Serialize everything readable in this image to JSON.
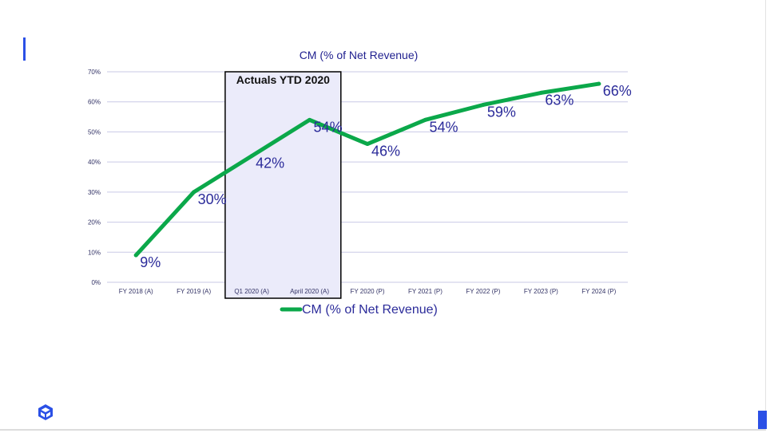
{
  "colors": {
    "accent": "#2b50e6",
    "series_line": "#0ba84a",
    "highlight_fill": "#ebebfa",
    "highlight_border": "#000000",
    "grid": "#c9c9e6"
  },
  "logo": {
    "icon": "cube-logo-icon"
  },
  "chart_data": {
    "type": "line",
    "title": "CM (% of Net Revenue)",
    "categories": [
      "FY 2018 (A)",
      "FY 2019 (A)",
      "Q1 2020 (A)",
      "April 2020 (A)",
      "FY 2020 (P)",
      "FY 2021 (P)",
      "FY 2022 (P)",
      "FY 2023 (P)",
      "FY 2024 (P)"
    ],
    "series": [
      {
        "name": "CM (% of Net Revenue)",
        "values": [
          9,
          30,
          42,
          54,
          46,
          54,
          59,
          63,
          66
        ]
      }
    ],
    "data_labels": [
      "9%",
      "30%",
      "42%",
      "54%",
      "46%",
      "54%",
      "59%",
      "63%",
      "66%"
    ],
    "y_ticks": [
      "0%",
      "10%",
      "20%",
      "30%",
      "40%",
      "50%",
      "60%",
      "70%"
    ],
    "ylim": [
      0,
      70
    ],
    "grid": true,
    "legend": "bottom",
    "annotation": {
      "label": "Actuals YTD 2020",
      "spans": [
        "Q1 2020 (A)",
        "April 2020 (A)"
      ]
    }
  }
}
